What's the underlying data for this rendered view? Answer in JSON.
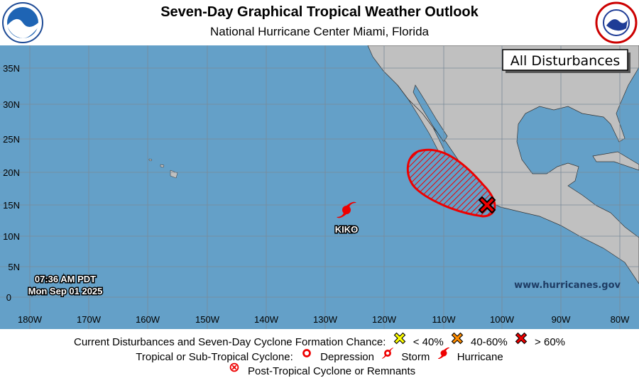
{
  "header": {
    "title": "Seven-Day Graphical Tropical Weather Outlook",
    "subtitle": "National Hurricane Center  Miami, Florida",
    "left_logo": "NOAA",
    "right_logo": "National Weather Service"
  },
  "map": {
    "panel_label": "All Disturbances",
    "lat_labels": [
      "35N",
      "30N",
      "25N",
      "20N",
      "15N",
      "10N",
      "5N",
      "0"
    ],
    "lon_labels": [
      "180W",
      "170W",
      "160W",
      "150W",
      "140W",
      "130W",
      "120W",
      "110W",
      "100W",
      "90W",
      "80W"
    ],
    "timestamp_time": "07:36 AM PDT",
    "timestamp_date": "Mon Sep 01 2025",
    "website": "www.hurricanes.gov",
    "storm": {
      "name": "KIKO",
      "type": "hurricane",
      "lat": 14,
      "lon": -127
    },
    "disturbance": {
      "chance": "> 60%",
      "color": "#ff0000",
      "marker_lat": 15,
      "marker_lon": -102.5
    },
    "colors": {
      "ocean": "#64a0c8",
      "land": "#c0c0c0",
      "grid": "#808080",
      "high": "#ff0000",
      "medium": "#ff8c00",
      "low": "#ffff00"
    }
  },
  "legend": {
    "row1_label": "Current Disturbances and Seven-Day Cyclone Formation Chance:",
    "low": "< 40%",
    "medium": "40-60%",
    "high": "> 60%",
    "row2_label": "Tropical or Sub-Tropical Cyclone:",
    "depression": "Depression",
    "storm": "Storm",
    "hurricane": "Hurricane",
    "post_tropical": "Post-Tropical Cyclone or Remnants"
  }
}
